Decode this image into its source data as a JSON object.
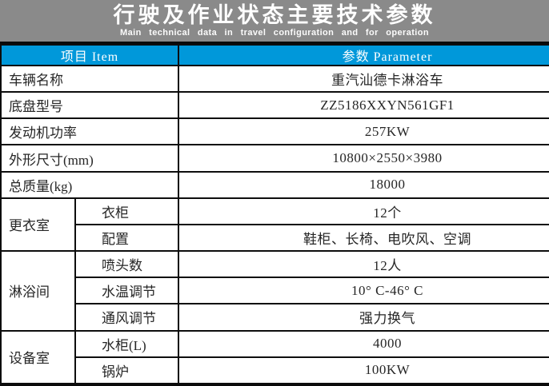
{
  "header": {
    "title": "行驶及作业状态主要技术参数",
    "subtitle": "Main technical data in travel configuration and for operation"
  },
  "table": {
    "columns": {
      "item": "项目 Item",
      "parameter": "参数 Parameter"
    },
    "simple_rows": [
      {
        "label": "车辆名称",
        "value": "重汽汕德卡淋浴车"
      },
      {
        "label": "底盘型号",
        "value": "ZZ5186XXYN561GF1"
      },
      {
        "label": "发动机功率",
        "value": "257KW"
      },
      {
        "label": "外形尺寸(mm)",
        "value": "10800×2550×3980"
      },
      {
        "label": "总质量(kg)",
        "value": "18000"
      }
    ],
    "groups": [
      {
        "label": "更衣室",
        "rows": [
          {
            "label": "衣柜",
            "value": "12个"
          },
          {
            "label": "配置",
            "value": "鞋柜、长椅、电吹风、空调"
          }
        ]
      },
      {
        "label": "淋浴间",
        "rows": [
          {
            "label": "喷头数",
            "value": "12人"
          },
          {
            "label": "水温调节",
            "value": "10° C-46° C"
          },
          {
            "label": "通风调节",
            "value": "强力换气"
          }
        ]
      },
      {
        "label": "设备室",
        "rows": [
          {
            "label": "水柜(L)",
            "value": "4000"
          },
          {
            "label": "锅炉",
            "value": "100KW"
          }
        ]
      }
    ]
  },
  "colors": {
    "accent_cyan": "#0098da",
    "band_gray": "#8a8a8a",
    "border_black": "#0d0d0d"
  }
}
